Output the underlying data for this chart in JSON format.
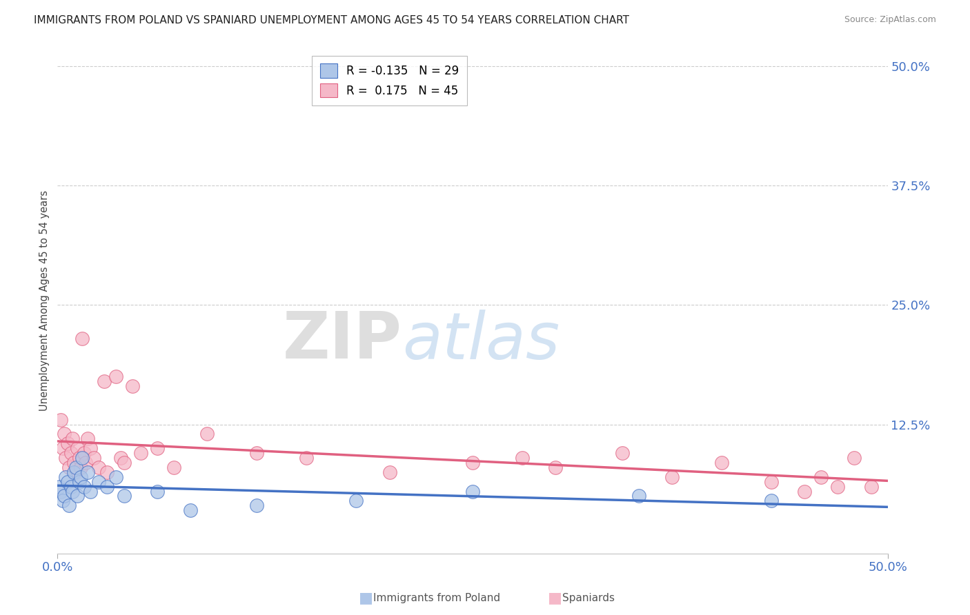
{
  "title": "IMMIGRANTS FROM POLAND VS SPANIARD UNEMPLOYMENT AMONG AGES 45 TO 54 YEARS CORRELATION CHART",
  "source": "Source: ZipAtlas.com",
  "ylabel": "Unemployment Among Ages 45 to 54 years",
  "legend_labels": [
    "Immigrants from Poland",
    "Spaniards"
  ],
  "legend_R": [
    -0.135,
    0.175
  ],
  "legend_N": [
    29,
    45
  ],
  "blue_color": "#aec6e8",
  "pink_color": "#f5b8c8",
  "blue_line_color": "#4472c4",
  "pink_line_color": "#e06080",
  "blue_scatter": [
    [
      0.001,
      0.06
    ],
    [
      0.002,
      0.055
    ],
    [
      0.003,
      0.045
    ],
    [
      0.004,
      0.05
    ],
    [
      0.005,
      0.07
    ],
    [
      0.006,
      0.065
    ],
    [
      0.007,
      0.04
    ],
    [
      0.008,
      0.06
    ],
    [
      0.009,
      0.055
    ],
    [
      0.01,
      0.075
    ],
    [
      0.011,
      0.08
    ],
    [
      0.012,
      0.05
    ],
    [
      0.013,
      0.065
    ],
    [
      0.014,
      0.07
    ],
    [
      0.015,
      0.09
    ],
    [
      0.016,
      0.06
    ],
    [
      0.018,
      0.075
    ],
    [
      0.02,
      0.055
    ],
    [
      0.025,
      0.065
    ],
    [
      0.03,
      0.06
    ],
    [
      0.035,
      0.07
    ],
    [
      0.04,
      0.05
    ],
    [
      0.06,
      0.055
    ],
    [
      0.08,
      0.035
    ],
    [
      0.12,
      0.04
    ],
    [
      0.18,
      0.045
    ],
    [
      0.25,
      0.055
    ],
    [
      0.35,
      0.05
    ],
    [
      0.43,
      0.045
    ]
  ],
  "pink_scatter": [
    [
      0.002,
      0.13
    ],
    [
      0.003,
      0.1
    ],
    [
      0.004,
      0.115
    ],
    [
      0.005,
      0.09
    ],
    [
      0.006,
      0.105
    ],
    [
      0.007,
      0.08
    ],
    [
      0.008,
      0.095
    ],
    [
      0.009,
      0.11
    ],
    [
      0.01,
      0.085
    ],
    [
      0.011,
      0.075
    ],
    [
      0.012,
      0.1
    ],
    [
      0.013,
      0.09
    ],
    [
      0.014,
      0.08
    ],
    [
      0.015,
      0.215
    ],
    [
      0.016,
      0.095
    ],
    [
      0.017,
      0.085
    ],
    [
      0.018,
      0.11
    ],
    [
      0.02,
      0.1
    ],
    [
      0.022,
      0.09
    ],
    [
      0.025,
      0.08
    ],
    [
      0.028,
      0.17
    ],
    [
      0.03,
      0.075
    ],
    [
      0.035,
      0.175
    ],
    [
      0.038,
      0.09
    ],
    [
      0.04,
      0.085
    ],
    [
      0.045,
      0.165
    ],
    [
      0.05,
      0.095
    ],
    [
      0.06,
      0.1
    ],
    [
      0.07,
      0.08
    ],
    [
      0.09,
      0.115
    ],
    [
      0.12,
      0.095
    ],
    [
      0.15,
      0.09
    ],
    [
      0.2,
      0.075
    ],
    [
      0.25,
      0.085
    ],
    [
      0.28,
      0.09
    ],
    [
      0.3,
      0.08
    ],
    [
      0.34,
      0.095
    ],
    [
      0.37,
      0.07
    ],
    [
      0.4,
      0.085
    ],
    [
      0.43,
      0.065
    ],
    [
      0.45,
      0.055
    ],
    [
      0.46,
      0.07
    ],
    [
      0.47,
      0.06
    ],
    [
      0.48,
      0.09
    ],
    [
      0.49,
      0.06
    ]
  ],
  "xlim": [
    0.0,
    0.5
  ],
  "ylim": [
    -0.01,
    0.52
  ],
  "xtick_vals": [
    0.0,
    0.5
  ],
  "xtick_labels": [
    "0.0%",
    "50.0%"
  ],
  "ytick_right_vals": [
    0.5,
    0.375,
    0.25,
    0.125
  ],
  "ytick_right_labels": [
    "50.0%",
    "37.5%",
    "25.0%",
    "12.5%"
  ],
  "watermark_zip": "ZIP",
  "watermark_atlas": "atlas",
  "background_color": "#ffffff",
  "grid_color": "#cccccc"
}
